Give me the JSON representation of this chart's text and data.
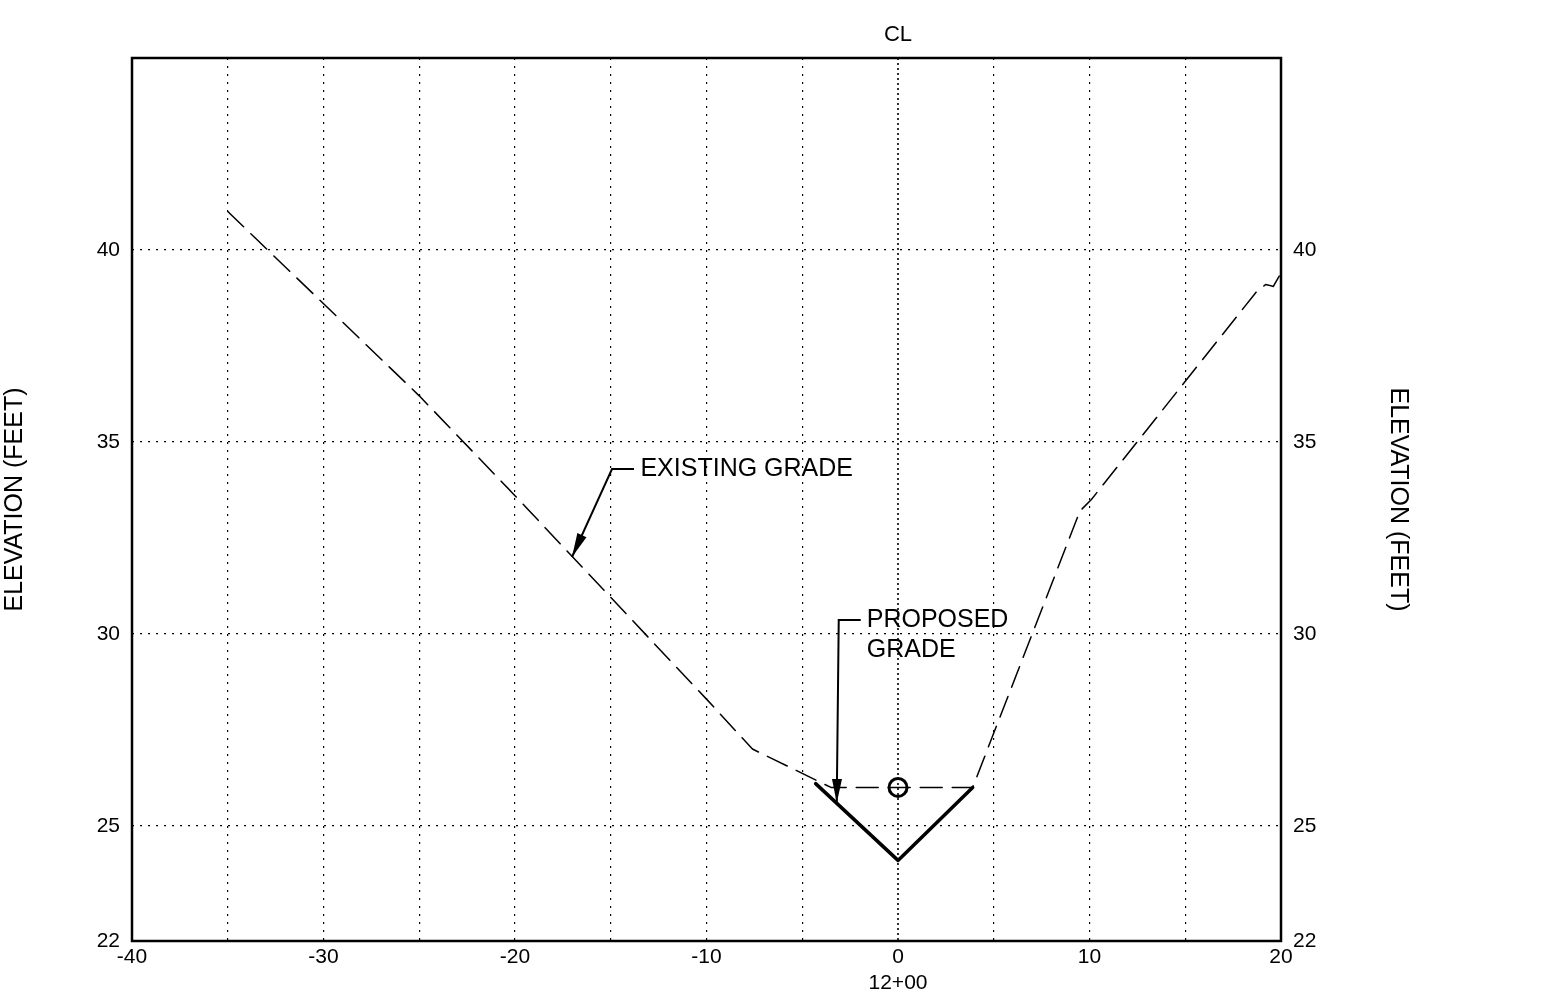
{
  "chart_data": {
    "type": "line",
    "xlim": [
      -40,
      20
    ],
    "ylim": [
      22,
      45
    ],
    "y2lim": [
      22,
      45
    ],
    "xticks": [
      -40,
      {
        "value": -35,
        "label": null
      },
      -30,
      {
        "value": -25,
        "label": null
      },
      -20,
      {
        "value": -15,
        "label": null
      },
      -10,
      {
        "value": -5,
        "label": null
      },
      {
        "value": 0,
        "label": "0\n12+00"
      },
      {
        "value": 5,
        "label": null
      },
      10,
      {
        "value": 15,
        "label": null
      },
      20
    ],
    "yticks": [
      22,
      25,
      30,
      35,
      40
    ],
    "y2ticks": [
      22,
      25,
      30,
      35,
      40
    ],
    "ylabel": "ELEVATION (FEET)",
    "y2label": "ELEVATION (FEET)",
    "grid": true,
    "legend": false,
    "series": [
      {
        "color": "#000000",
        "line_style": "dashed",
        "marker": "none",
        "x": [
          -35,
          -25,
          -20,
          -10,
          -7.6,
          -3.5,
          3.9,
          9.5,
          10.1,
          18.7,
          19.2,
          19.6,
          20
        ],
        "values": [
          41,
          36.2,
          33.6,
          28.3,
          27,
          26,
          26,
          33.2,
          33.5,
          38.9,
          39.1,
          39.05,
          39.4
        ]
      },
      {
        "color": "#000000",
        "line_style": "solid",
        "marker": "none",
        "x": [
          -4.3,
          0,
          3.9
        ],
        "values": [
          26.1,
          24.1,
          26
        ]
      },
      {
        "type": "scatter",
        "color": "#000000",
        "marker": "circle",
        "x": [
          0
        ],
        "values": [
          26
        ]
      }
    ],
    "ref_lines": [
      {
        "axis": "x",
        "value": 0,
        "label": "CL",
        "line_style": "dotted",
        "color": "#000000"
      }
    ],
    "annotations": [
      {
        "text": "EXISTING GRADE",
        "x": -17,
        "y": 32
      },
      {
        "text": "PROPOSED\nGRADE",
        "x": -3.2,
        "y": 25.6
      }
    ]
  }
}
